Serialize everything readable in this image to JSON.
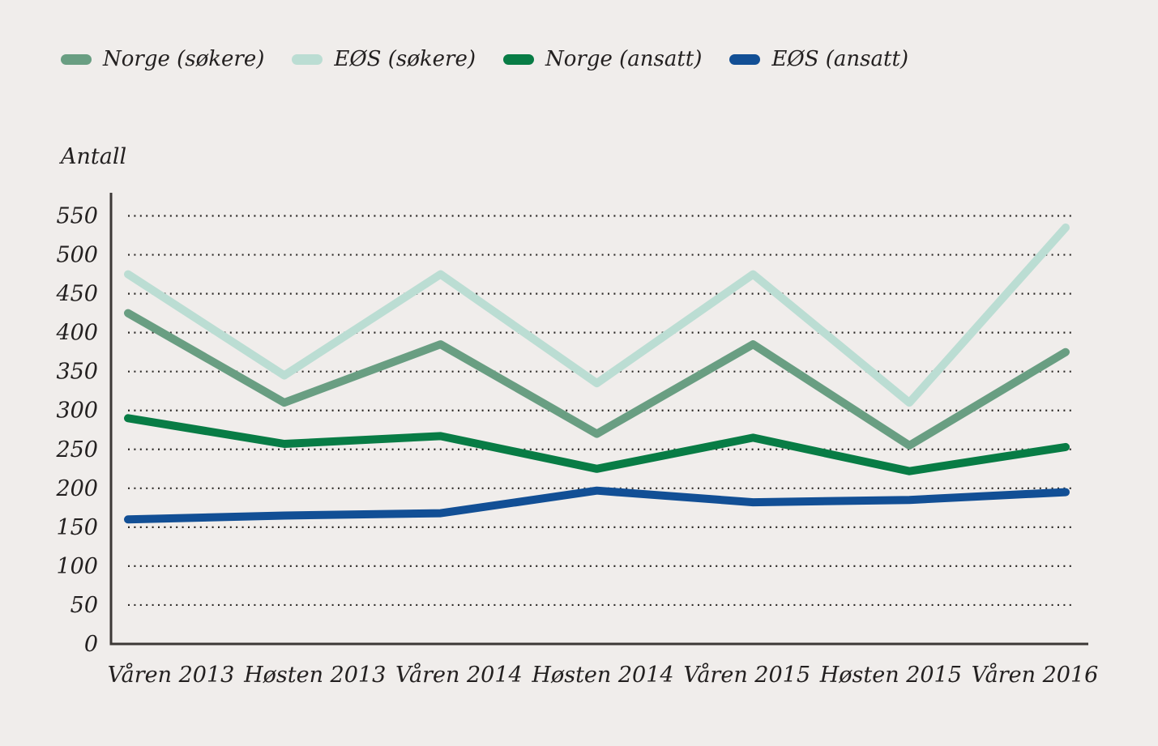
{
  "chart_data": {
    "type": "line",
    "title": "",
    "ylabel": "Antall",
    "xlabel": "",
    "categories": [
      "Våren 2013",
      "Høsten 2013",
      "Våren 2014",
      "Høsten 2014",
      "Våren 2015",
      "Høsten 2015",
      "Våren 2016"
    ],
    "series": [
      {
        "name": "Norge (søkere)",
        "color": "#699e82",
        "values": [
          425,
          310,
          385,
          270,
          385,
          255,
          375
        ]
      },
      {
        "name": "EØS (søkere)",
        "color": "#bbddd3",
        "values": [
          475,
          345,
          475,
          335,
          475,
          310,
          535
        ]
      },
      {
        "name": "Norge (ansatt)",
        "color": "#087c45",
        "values": [
          290,
          257,
          267,
          225,
          265,
          222,
          253
        ]
      },
      {
        "name": "EØS (ansatt)",
        "color": "#124f95",
        "values": [
          160,
          165,
          168,
          197,
          182,
          185,
          195
        ]
      }
    ],
    "ylim": [
      0,
      550
    ],
    "yticks": [
      0,
      50,
      100,
      150,
      200,
      250,
      300,
      350,
      400,
      450,
      500,
      550
    ],
    "grid": "horizontal dotted lines",
    "legend_position": "top-left",
    "background_color": "#f0edeb",
    "text_color": "#232020",
    "axis_color": "#3c3836",
    "grid_color": "#2e2b28"
  }
}
